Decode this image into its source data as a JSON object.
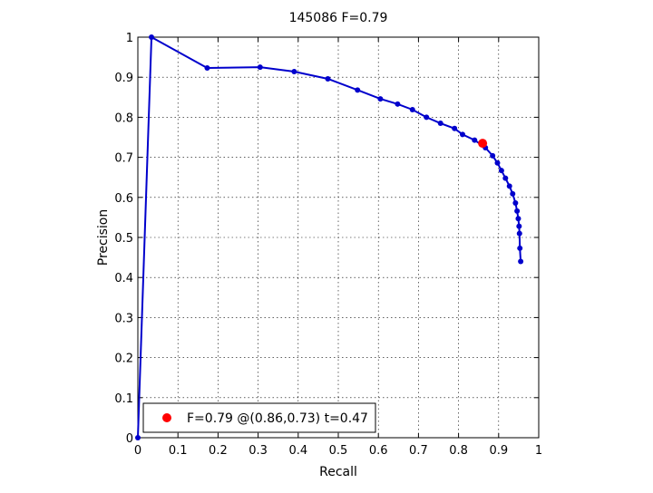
{
  "chart_data": {
    "type": "line",
    "title": "145086 F=0.79",
    "xlabel": "Recall",
    "ylabel": "Precision",
    "xlim": [
      0,
      1
    ],
    "ylim": [
      0,
      1
    ],
    "xticks": [
      "0",
      "0.1",
      "0.2",
      "0.3",
      "0.4",
      "0.5",
      "0.6",
      "0.7",
      "0.8",
      "0.9",
      "1"
    ],
    "yticks": [
      "0",
      "0.1",
      "0.2",
      "0.3",
      "0.4",
      "0.5",
      "0.6",
      "0.7",
      "0.8",
      "0.9",
      "1"
    ],
    "grid": true,
    "legend_position": "bottom-left",
    "series_color": "#0000cc",
    "highlight_color": "#ff0000",
    "series": [
      {
        "x": [
          0,
          0.034,
          0.173,
          0.305,
          0.39,
          0.474,
          0.548,
          0.605,
          0.648,
          0.685,
          0.72,
          0.755,
          0.79,
          0.81,
          0.84,
          0.867,
          0.885,
          0.897,
          0.907,
          0.917,
          0.927,
          0.935,
          0.942,
          0.946,
          0.949,
          0.951,
          0.952,
          0.953,
          0.955
        ],
        "y": [
          0,
          1.0,
          0.923,
          0.925,
          0.914,
          0.896,
          0.868,
          0.846,
          0.833,
          0.819,
          0.8,
          0.785,
          0.772,
          0.757,
          0.743,
          0.724,
          0.704,
          0.686,
          0.667,
          0.648,
          0.628,
          0.609,
          0.586,
          0.566,
          0.547,
          0.528,
          0.51,
          0.473,
          0.44
        ]
      }
    ],
    "highlight": {
      "x": 0.86,
      "y": 0.735
    },
    "legend_label": "F=0.79 @(0.86,0.73) t=0.47"
  }
}
